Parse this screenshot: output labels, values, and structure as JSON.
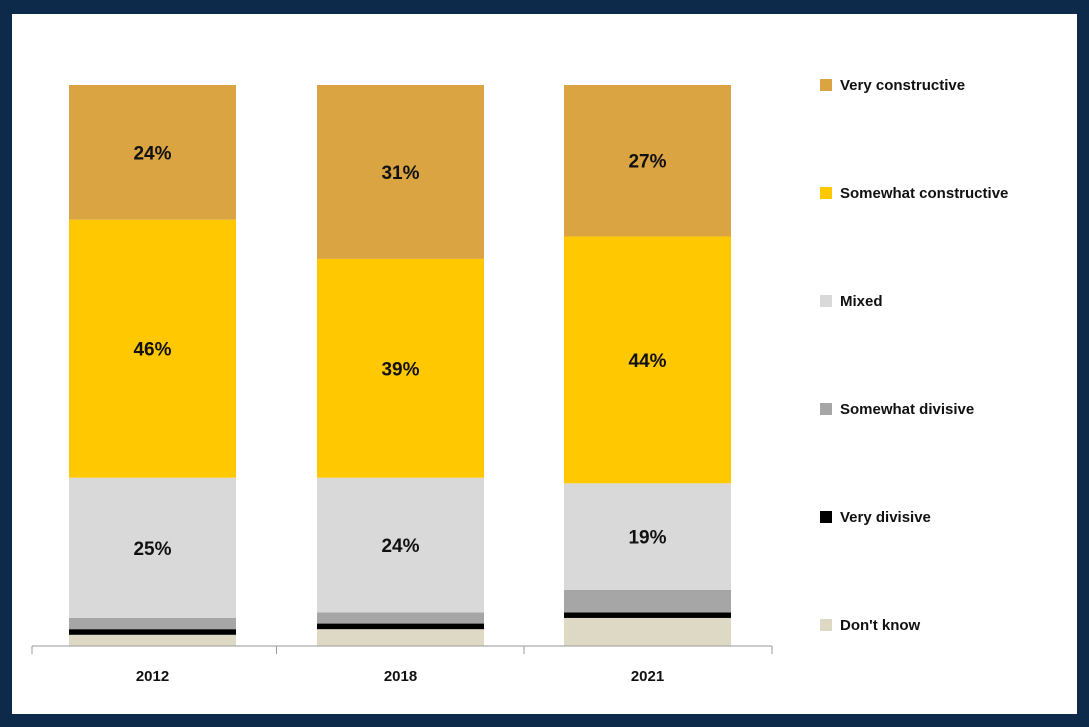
{
  "chart_data": {
    "type": "bar",
    "stacked": true,
    "orientation": "vertical",
    "categories": [
      "2012",
      "2018",
      "2021"
    ],
    "series": [
      {
        "name": "Don't know",
        "color": "#ddd9c4",
        "values": [
          2,
          3,
          5
        ]
      },
      {
        "name": "Very divisive",
        "color": "#000000",
        "values": [
          1,
          1,
          1
        ]
      },
      {
        "name": "Somewhat divisive",
        "color": "#a6a6a6",
        "values": [
          2,
          2,
          4
        ]
      },
      {
        "name": "Mixed",
        "color": "#d9d9d9",
        "values": [
          25,
          24,
          19
        ]
      },
      {
        "name": "Somewhat constructive",
        "color": "#ffc800",
        "values": [
          46,
          39,
          44
        ]
      },
      {
        "name": "Very constructive",
        "color": "#d9a441",
        "values": [
          24,
          31,
          27
        ]
      }
    ],
    "data_labels": {
      "Mixed": [
        "25%",
        "24%",
        "19%"
      ],
      "Somewhat constructive": [
        "46%",
        "39%",
        "44%"
      ],
      "Very constructive": [
        "24%",
        "31%",
        "27%"
      ]
    },
    "legend_order": [
      "Very constructive",
      "Somewhat constructive",
      "Mixed",
      "Somewhat divisive",
      "Very divisive",
      "Don't know"
    ],
    "legend_position": "right",
    "ylim": [
      0,
      100
    ],
    "grid": false,
    "title": "",
    "xlabel": "",
    "ylabel": ""
  }
}
